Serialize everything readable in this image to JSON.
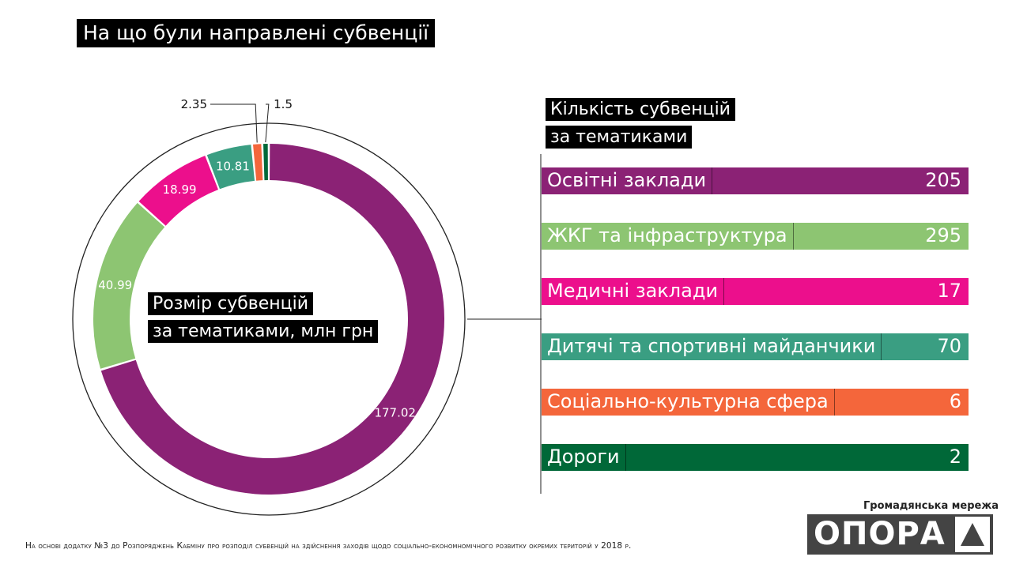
{
  "title": "На що були направлені субвенції",
  "donut_label": {
    "line1": "Розмір субвенцій",
    "line2": "за тематиками, млн грн"
  },
  "bars_label": {
    "line1": "Кількість субвенцій",
    "line2": "за тематиками"
  },
  "footnote": "На основі додатку №3 до Розпоряджень Кабміну про розподіл субвенцій на здійснення заходів щодо соціально-економномічного розвитку окремих територій у 2018 р.",
  "logo": {
    "tagline": "Громадянська мережа",
    "name": "ОПОРА"
  },
  "colors": {
    "purple": "#8B2275",
    "lightgreen": "#8DC572",
    "pink": "#EC0F8C",
    "teal": "#3A9E82",
    "orange": "#F4663B",
    "darkgreen": "#006838"
  },
  "chart_data": [
    {
      "type": "pie",
      "title": "Розмір субвенцій за тематиками, млн грн",
      "categories": [
        "Освітні заклади",
        "ЖКГ та інфраструктура",
        "Медичні заклади",
        "Дитячі та спортивні майданчики",
        "Соціально-культурна сфера",
        "Дороги"
      ],
      "values": [
        177.02,
        40.99,
        18.99,
        10.81,
        2.35,
        1.5
      ],
      "labels": [
        "177.02",
        "40.99",
        "18.99",
        "10.81",
        "2.35",
        "1.5"
      ],
      "colors": [
        "#8B2275",
        "#8DC572",
        "#EC0F8C",
        "#3A9E82",
        "#F4663B",
        "#006838"
      ]
    },
    {
      "type": "bar",
      "title": "Кількість субвенцій за тематиками",
      "categories": [
        "Освітні заклади",
        "ЖКГ та інфраструктура",
        "Медичні заклади",
        "Дитячі та спортивні майданчики",
        "Соціально-культурна сфера",
        "Дороги"
      ],
      "values": [
        205,
        295,
        17,
        70,
        6,
        2
      ],
      "labels": [
        "205",
        "295",
        "17",
        "70",
        "6",
        "2"
      ],
      "colors": [
        "#8B2275",
        "#8DC572",
        "#EC0F8C",
        "#3A9E82",
        "#F4663B",
        "#006838"
      ]
    }
  ]
}
